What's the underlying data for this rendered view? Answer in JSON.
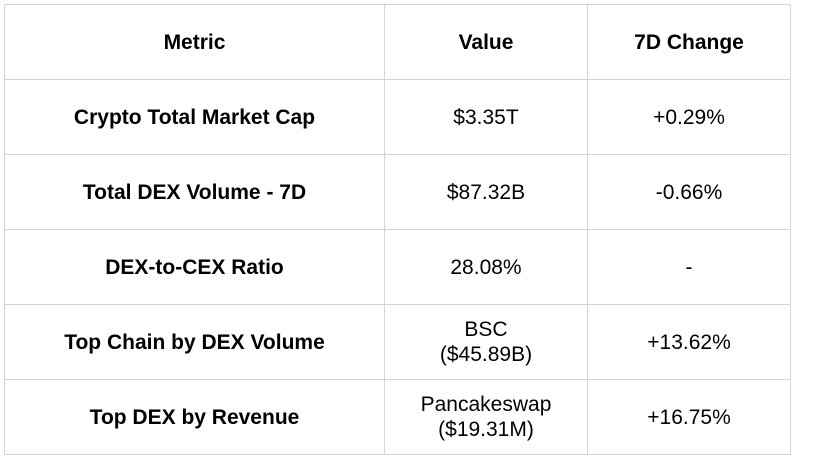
{
  "table": {
    "headers": {
      "metric": "Metric",
      "value": "Value",
      "change": "7D Change"
    },
    "rows": [
      {
        "metric": "Crypto Total Market Cap",
        "value_line1": "$3.35T",
        "value_line2": "",
        "change": "+0.29%"
      },
      {
        "metric": "Total DEX Volume - 7D",
        "value_line1": "$87.32B",
        "value_line2": "",
        "change": "-0.66%"
      },
      {
        "metric": "DEX-to-CEX Ratio",
        "value_line1": "28.08%",
        "value_line2": "",
        "change": "-"
      },
      {
        "metric": "Top Chain by DEX Volume",
        "value_line1": "BSC",
        "value_line2": "($45.89B)",
        "change": "+13.62%"
      },
      {
        "metric": "Top DEX by Revenue",
        "value_line1": "Pancakeswap",
        "value_line2": "($19.31M)",
        "change": "+16.75%"
      }
    ]
  }
}
